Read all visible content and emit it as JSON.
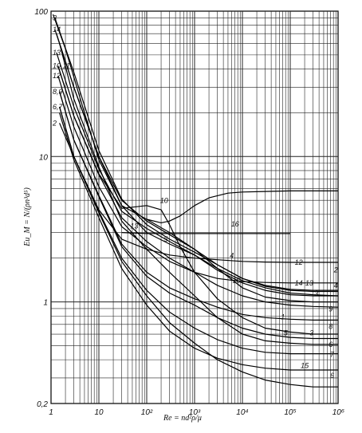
{
  "chart_data": {
    "type": "line",
    "x_scale": "log",
    "y_scale": "log",
    "xlim": [
      1,
      1000000
    ],
    "ylim": [
      0.2,
      100
    ],
    "xlabel": "Re = nd²ρ/μ",
    "ylabel": "Eu_M = N/(ρn³d⁵)",
    "grid": true,
    "x_tick_labels": [
      {
        "value": 1,
        "label": "1"
      },
      {
        "value": 10,
        "label": "10"
      },
      {
        "value": 100,
        "label": "10²"
      },
      {
        "value": 1000,
        "label": "10³"
      },
      {
        "value": 10000,
        "label": "10⁴"
      },
      {
        "value": 100000,
        "label": "10⁵"
      },
      {
        "value": 1000000,
        "label": "10⁶"
      }
    ],
    "y_tick_labels": [
      {
        "value": 100,
        "label": "100"
      },
      {
        "value": 10,
        "label": "10"
      },
      {
        "value": 1,
        "label": "1"
      },
      {
        "value": 0.2,
        "label": "0,2"
      }
    ],
    "left_labels": [
      {
        "label": "3",
        "y": 90
      },
      {
        "label": "14",
        "y": 75
      },
      {
        "label": "13",
        "y": 52
      },
      {
        "label": "10,11",
        "y": 42
      },
      {
        "label": "12",
        "y": 36
      },
      {
        "label": "8,9",
        "y": 28
      },
      {
        "label": "6,7",
        "y": 22
      },
      {
        "label": "2",
        "y": 17
      }
    ],
    "series": [
      {
        "name": "1",
        "x": [
          1.1,
          2,
          5,
          10,
          30,
          100,
          300,
          1000,
          3000,
          10000,
          30000,
          100000,
          300000,
          1000000
        ],
        "y": [
          95,
          55,
          20,
          9.5,
          4.6,
          3.7,
          3.0,
          2.3,
          1.7,
          1.25,
          1.08,
          1.02,
          1.0,
          1.0
        ]
      },
      {
        "name": "2",
        "x": [
          1.5,
          3,
          10,
          30,
          100,
          300,
          1000,
          3000,
          10000,
          30000,
          100000,
          300000,
          1000000
        ],
        "y": [
          17,
          10,
          4.3,
          2.7,
          2.3,
          2.1,
          2.0,
          1.95,
          1.9,
          1.88,
          1.87,
          1.87,
          1.87
        ]
      },
      {
        "name": "3",
        "x": [
          1.2,
          3,
          10,
          30,
          100,
          300,
          1000,
          3000,
          10000,
          30000,
          100000,
          300000,
          1000000
        ],
        "y": [
          90,
          38,
          11,
          5.1,
          3.4,
          2.7,
          2.2,
          1.8,
          1.45,
          1.3,
          1.22,
          1.2,
          1.2
        ]
      },
      {
        "name": "4",
        "x": [
          1.3,
          3,
          10,
          30,
          100,
          300,
          1000,
          3000,
          10000,
          30000,
          100000,
          300000,
          1000000
        ],
        "y": [
          70,
          30,
          10,
          4.6,
          3.0,
          2.5,
          2.1,
          1.7,
          1.4,
          1.25,
          1.15,
          1.12,
          1.1
        ]
      },
      {
        "name": "5",
        "x": [
          1.5,
          3,
          10,
          30,
          100,
          300,
          1000,
          3000,
          10000,
          30000,
          100000,
          300000,
          1000000
        ],
        "y": [
          60,
          25,
          8.5,
          3.6,
          2.3,
          1.6,
          1.1,
          0.78,
          0.6,
          0.54,
          0.52,
          0.51,
          0.51
        ]
      },
      {
        "name": "6",
        "x": [
          1.5,
          3,
          10,
          30,
          100,
          300,
          1000,
          3000,
          10000,
          30000,
          100000,
          300000,
          1000000
        ],
        "y": [
          22,
          10,
          4.1,
          1.9,
          1.1,
          0.72,
          0.52,
          0.4,
          0.33,
          0.29,
          0.27,
          0.26,
          0.26
        ]
      },
      {
        "name": "7",
        "x": [
          1.5,
          3,
          10,
          30,
          100,
          300,
          1000,
          3000,
          10000,
          30000,
          100000,
          300000,
          1000000
        ],
        "y": [
          22,
          10,
          4.2,
          2.0,
          1.2,
          0.85,
          0.66,
          0.55,
          0.48,
          0.45,
          0.44,
          0.44,
          0.44
        ]
      },
      {
        "name": "8",
        "x": [
          1.5,
          3,
          10,
          30,
          100,
          300,
          1000,
          3000,
          10000,
          30000,
          100000,
          300000,
          1000000
        ],
        "y": [
          28,
          13,
          5.3,
          2.4,
          1.5,
          1.15,
          0.95,
          0.78,
          0.66,
          0.6,
          0.57,
          0.56,
          0.56
        ]
      },
      {
        "name": "9",
        "x": [
          1.5,
          3,
          10,
          30,
          100,
          300,
          1000,
          3000,
          10000,
          30000,
          100000,
          300000,
          1000000
        ],
        "y": [
          28,
          13,
          5.4,
          2.5,
          1.6,
          1.25,
          1.05,
          0.92,
          0.82,
          0.78,
          0.76,
          0.75,
          0.75
        ]
      },
      {
        "name": "10",
        "x": [
          1.4,
          3,
          10,
          30,
          100,
          200,
          300,
          500,
          1000,
          3000,
          10000,
          30000,
          100000,
          300000,
          1000000
        ],
        "y": [
          42,
          19,
          7.6,
          4.4,
          4.6,
          4.3,
          3.4,
          2.4,
          1.6,
          1.05,
          0.78,
          0.66,
          0.62,
          0.6,
          0.6
        ]
      },
      {
        "name": "11",
        "x": [
          1.4,
          3,
          10,
          30,
          100,
          300,
          1000,
          3000,
          10000,
          30000,
          100000,
          300000,
          1000000
        ],
        "y": [
          42,
          19,
          7.5,
          3.8,
          2.6,
          2.0,
          1.6,
          1.3,
          1.1,
          1.0,
          0.95,
          0.93,
          0.92
        ]
      },
      {
        "name": "12",
        "x": [
          1.4,
          3,
          10,
          30,
          100,
          300,
          1000,
          3000,
          10000,
          30000,
          100000,
          300000,
          1000000
        ],
        "y": [
          36,
          16,
          6.2,
          3.3,
          2.4,
          1.9,
          1.6,
          1.45,
          1.38,
          1.36,
          1.35,
          1.35,
          1.35
        ]
      },
      {
        "name": "13",
        "x": [
          1.3,
          3,
          10,
          30,
          100,
          300,
          1000,
          3000,
          10000,
          30000,
          100000,
          300000,
          1000000
        ],
        "y": [
          52,
          22,
          8.2,
          4.2,
          3.2,
          2.6,
          2.1,
          1.65,
          1.35,
          1.2,
          1.12,
          1.1,
          1.1
        ]
      },
      {
        "name": "14",
        "x": [
          1.2,
          3,
          10,
          30,
          100,
          300,
          1000,
          3000,
          10000,
          30000,
          100000,
          300000,
          1000000
        ],
        "y": [
          75,
          30,
          10,
          5.0,
          3.6,
          2.9,
          2.3,
          1.8,
          1.45,
          1.28,
          1.2,
          1.18,
          1.18
        ]
      },
      {
        "name": "15",
        "x": [
          1.5,
          3,
          10,
          30,
          100,
          300,
          1000,
          3000,
          10000,
          30000,
          100000,
          300000,
          1000000
        ],
        "y": [
          20,
          9.5,
          3.8,
          1.7,
          0.95,
          0.63,
          0.48,
          0.41,
          0.37,
          0.35,
          0.34,
          0.34,
          0.34
        ]
      },
      {
        "name": "16",
        "x": [
          100,
          200,
          300,
          500,
          1000,
          2000,
          5000,
          10000,
          30000,
          100000,
          300000,
          1000000
        ],
        "y": [
          3.7,
          3.5,
          3.6,
          3.9,
          4.6,
          5.2,
          5.6,
          5.7,
          5.75,
          5.8,
          5.8,
          5.8
        ]
      },
      {
        "name": "16-flat",
        "x": [
          30,
          100,
          300,
          1000,
          3000,
          10000,
          30000,
          100000
        ],
        "y": [
          3.0,
          2.95,
          2.95,
          2.95,
          2.95,
          2.95,
          2.95,
          2.95
        ]
      }
    ],
    "curve_labels": [
      {
        "label": "10",
        "x": 230,
        "y": 4.8
      },
      {
        "label": "16",
        "x": 7000,
        "y": 3.3
      },
      {
        "label": "13",
        "x": 55,
        "y": 3.2
      },
      {
        "label": "5",
        "x": 250,
        "y": 2.6
      },
      {
        "label": "4",
        "x": 6000,
        "y": 2.0
      },
      {
        "label": "12",
        "x": 150000,
        "y": 1.8
      },
      {
        "label": "10",
        "x": 7500,
        "y": 1.35
      },
      {
        "label": "14",
        "x": 150000,
        "y": 1.3
      },
      {
        "label": "13",
        "x": 250000,
        "y": 1.3
      },
      {
        "label": "2",
        "x": 900000,
        "y": 1.6
      },
      {
        "label": "4",
        "x": 900000,
        "y": 1.25
      },
      {
        "label": "3",
        "x": 350000,
        "y": 1.1
      },
      {
        "label": "9",
        "x": 700000,
        "y": 0.86
      },
      {
        "label": "1",
        "x": 70000,
        "y": 0.76
      },
      {
        "label": "8",
        "x": 700000,
        "y": 0.65
      },
      {
        "label": "5",
        "x": 80000,
        "y": 0.59
      },
      {
        "label": "3",
        "x": 280000,
        "y": 0.59
      },
      {
        "label": "6",
        "x": 700000,
        "y": 0.49
      },
      {
        "label": "7",
        "x": 750000,
        "y": 0.42
      },
      {
        "label": "15",
        "x": 200000,
        "y": 0.35
      },
      {
        "label": "6",
        "x": 750000,
        "y": 0.3
      }
    ]
  }
}
